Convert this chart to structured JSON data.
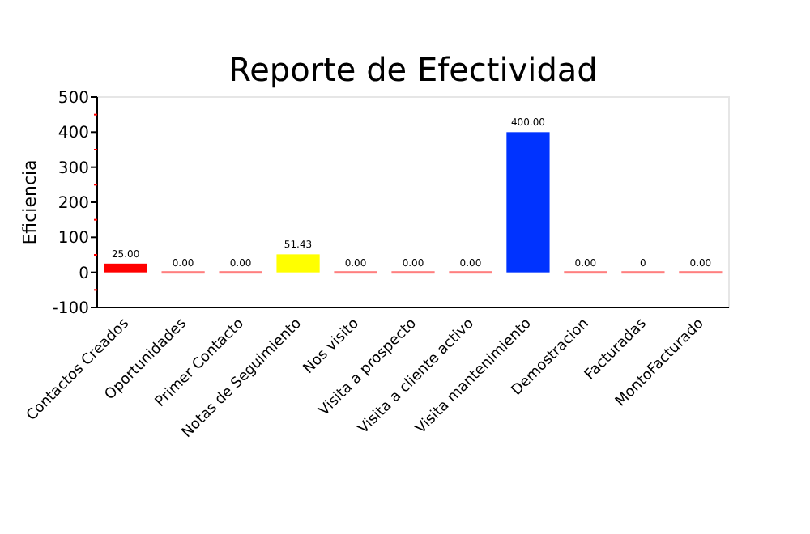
{
  "chart_data": {
    "type": "bar",
    "title": "Reporte de Efectividad",
    "ylabel": "Eficiencia",
    "categories": [
      "Contactos Creados",
      "Oportunidades",
      "Primer Contacto",
      "Notas de Seguimiento",
      "Nos visito",
      "Visita a prospecto",
      "Visita a cliente activo",
      "Visita mantenimiento",
      "Demostracion",
      "Facturadas",
      "MontoFacturado"
    ],
    "values": [
      25,
      0,
      0,
      51.43,
      0,
      0,
      0,
      400,
      0,
      0,
      0
    ],
    "colors": [
      "#ff0000",
      "#ff7f7f",
      "#ff7f7f",
      "#ffff00",
      "#ff7f7f",
      "#ff7f7f",
      "#ff7f7f",
      "#0033ff",
      "#ff7f7f",
      "#ff7f7f",
      "#ff7f7f"
    ],
    "value_labels": [
      "25.00",
      "0.00",
      "0.00",
      "51.43",
      "0.00",
      "0.00",
      "0.00",
      "400.00",
      "0.00",
      "0",
      "0.00"
    ],
    "ylim": [
      -100,
      500
    ],
    "yticks": [
      -100,
      {
        "value": -50,
        "label": null
      },
      0,
      {
        "value": 50,
        "label": null
      },
      100,
      {
        "value": 150,
        "label": null
      },
      200,
      {
        "value": 250,
        "label": null
      },
      300,
      {
        "value": 350,
        "label": null
      },
      400,
      {
        "value": 450,
        "label": null
      },
      500
    ],
    "grid": false
  }
}
